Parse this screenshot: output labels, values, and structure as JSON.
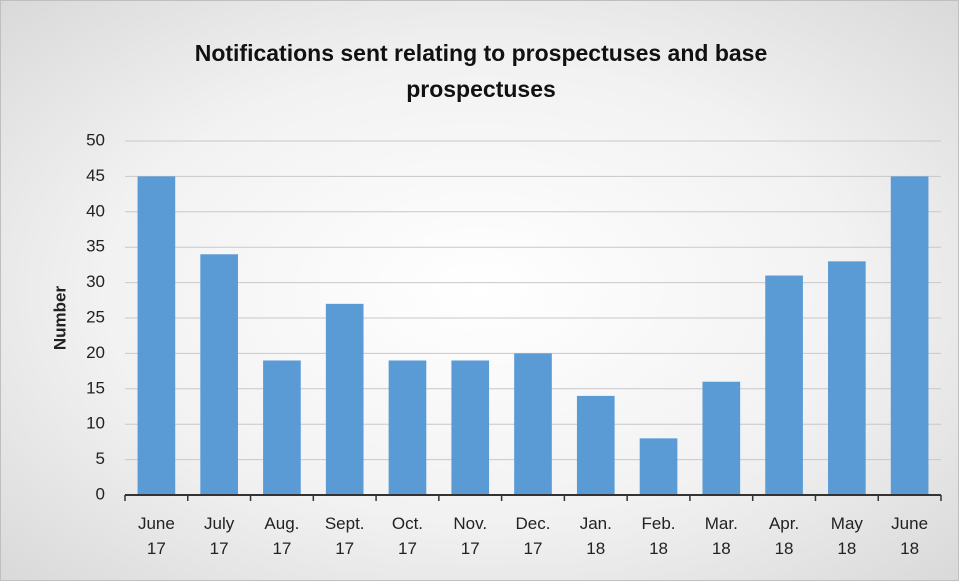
{
  "chart_data": {
    "type": "bar",
    "title": "Notifications sent relating to prospectuses and base prospectuses",
    "y_label": "Number",
    "categories": [
      "June 17",
      "July 17",
      "Aug. 17",
      "Sept. 17",
      "Oct. 17",
      "Nov. 17",
      "Dec. 17",
      "Jan. 18",
      "Feb. 18",
      "Mar. 18",
      "Apr. 18",
      "May 18",
      "June 18"
    ],
    "values": [
      45,
      34,
      19,
      27,
      19,
      19,
      20,
      14,
      8,
      16,
      31,
      33,
      45
    ],
    "color": "#5b9bd5",
    "ylim": [
      0,
      50
    ],
    "yticks": [
      0,
      5,
      10,
      15,
      20,
      25,
      30,
      35,
      40,
      45,
      50
    ],
    "grid": true
  }
}
